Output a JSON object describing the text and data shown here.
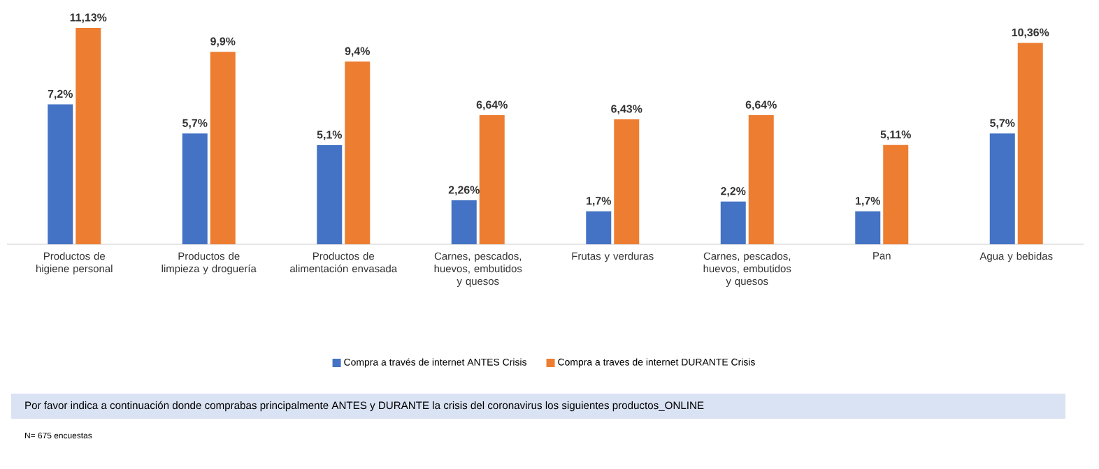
{
  "chart_data": {
    "type": "bar",
    "categories": [
      "Productos de higiene personal",
      "Productos de limpieza y droguería",
      "Productos de alimentación envasada",
      "Carnes, pescados, huevos, embutidos y quesos",
      "Frutas y verduras",
      "Carnes, pescados, huevos, embutidos y quesos",
      "Pan",
      "Agua y bebidas"
    ],
    "series": [
      {
        "name": "Compra a través de internet ANTES Crisis",
        "color": "#4472c4",
        "values": [
          7.2,
          5.7,
          5.1,
          2.26,
          1.7,
          2.2,
          1.7,
          5.7
        ],
        "value_labels": [
          "7,2%",
          "5,7%",
          "5,1%",
          "2,26%",
          "1,7%",
          "2,2%",
          "1,7%",
          "5,7%"
        ]
      },
      {
        "name": "Compra a traves de internet DURANTE Crisis",
        "color": "#ed7d31",
        "values": [
          11.13,
          9.9,
          9.4,
          6.64,
          6.43,
          6.64,
          5.11,
          10.36
        ],
        "value_labels": [
          "11,13%",
          "9,9%",
          "9,4%",
          "6,64%",
          "6,43%",
          "6,64%",
          "5,11%",
          "10,36%"
        ]
      }
    ],
    "legend": "bottom",
    "annotations": [
      "Por favor indica a continuación donde comprabas principalmente ANTES y DURANTE  la crisis del coronavirus los siguientes productos_ONLINE",
      "N= 675 encuestas"
    ]
  }
}
